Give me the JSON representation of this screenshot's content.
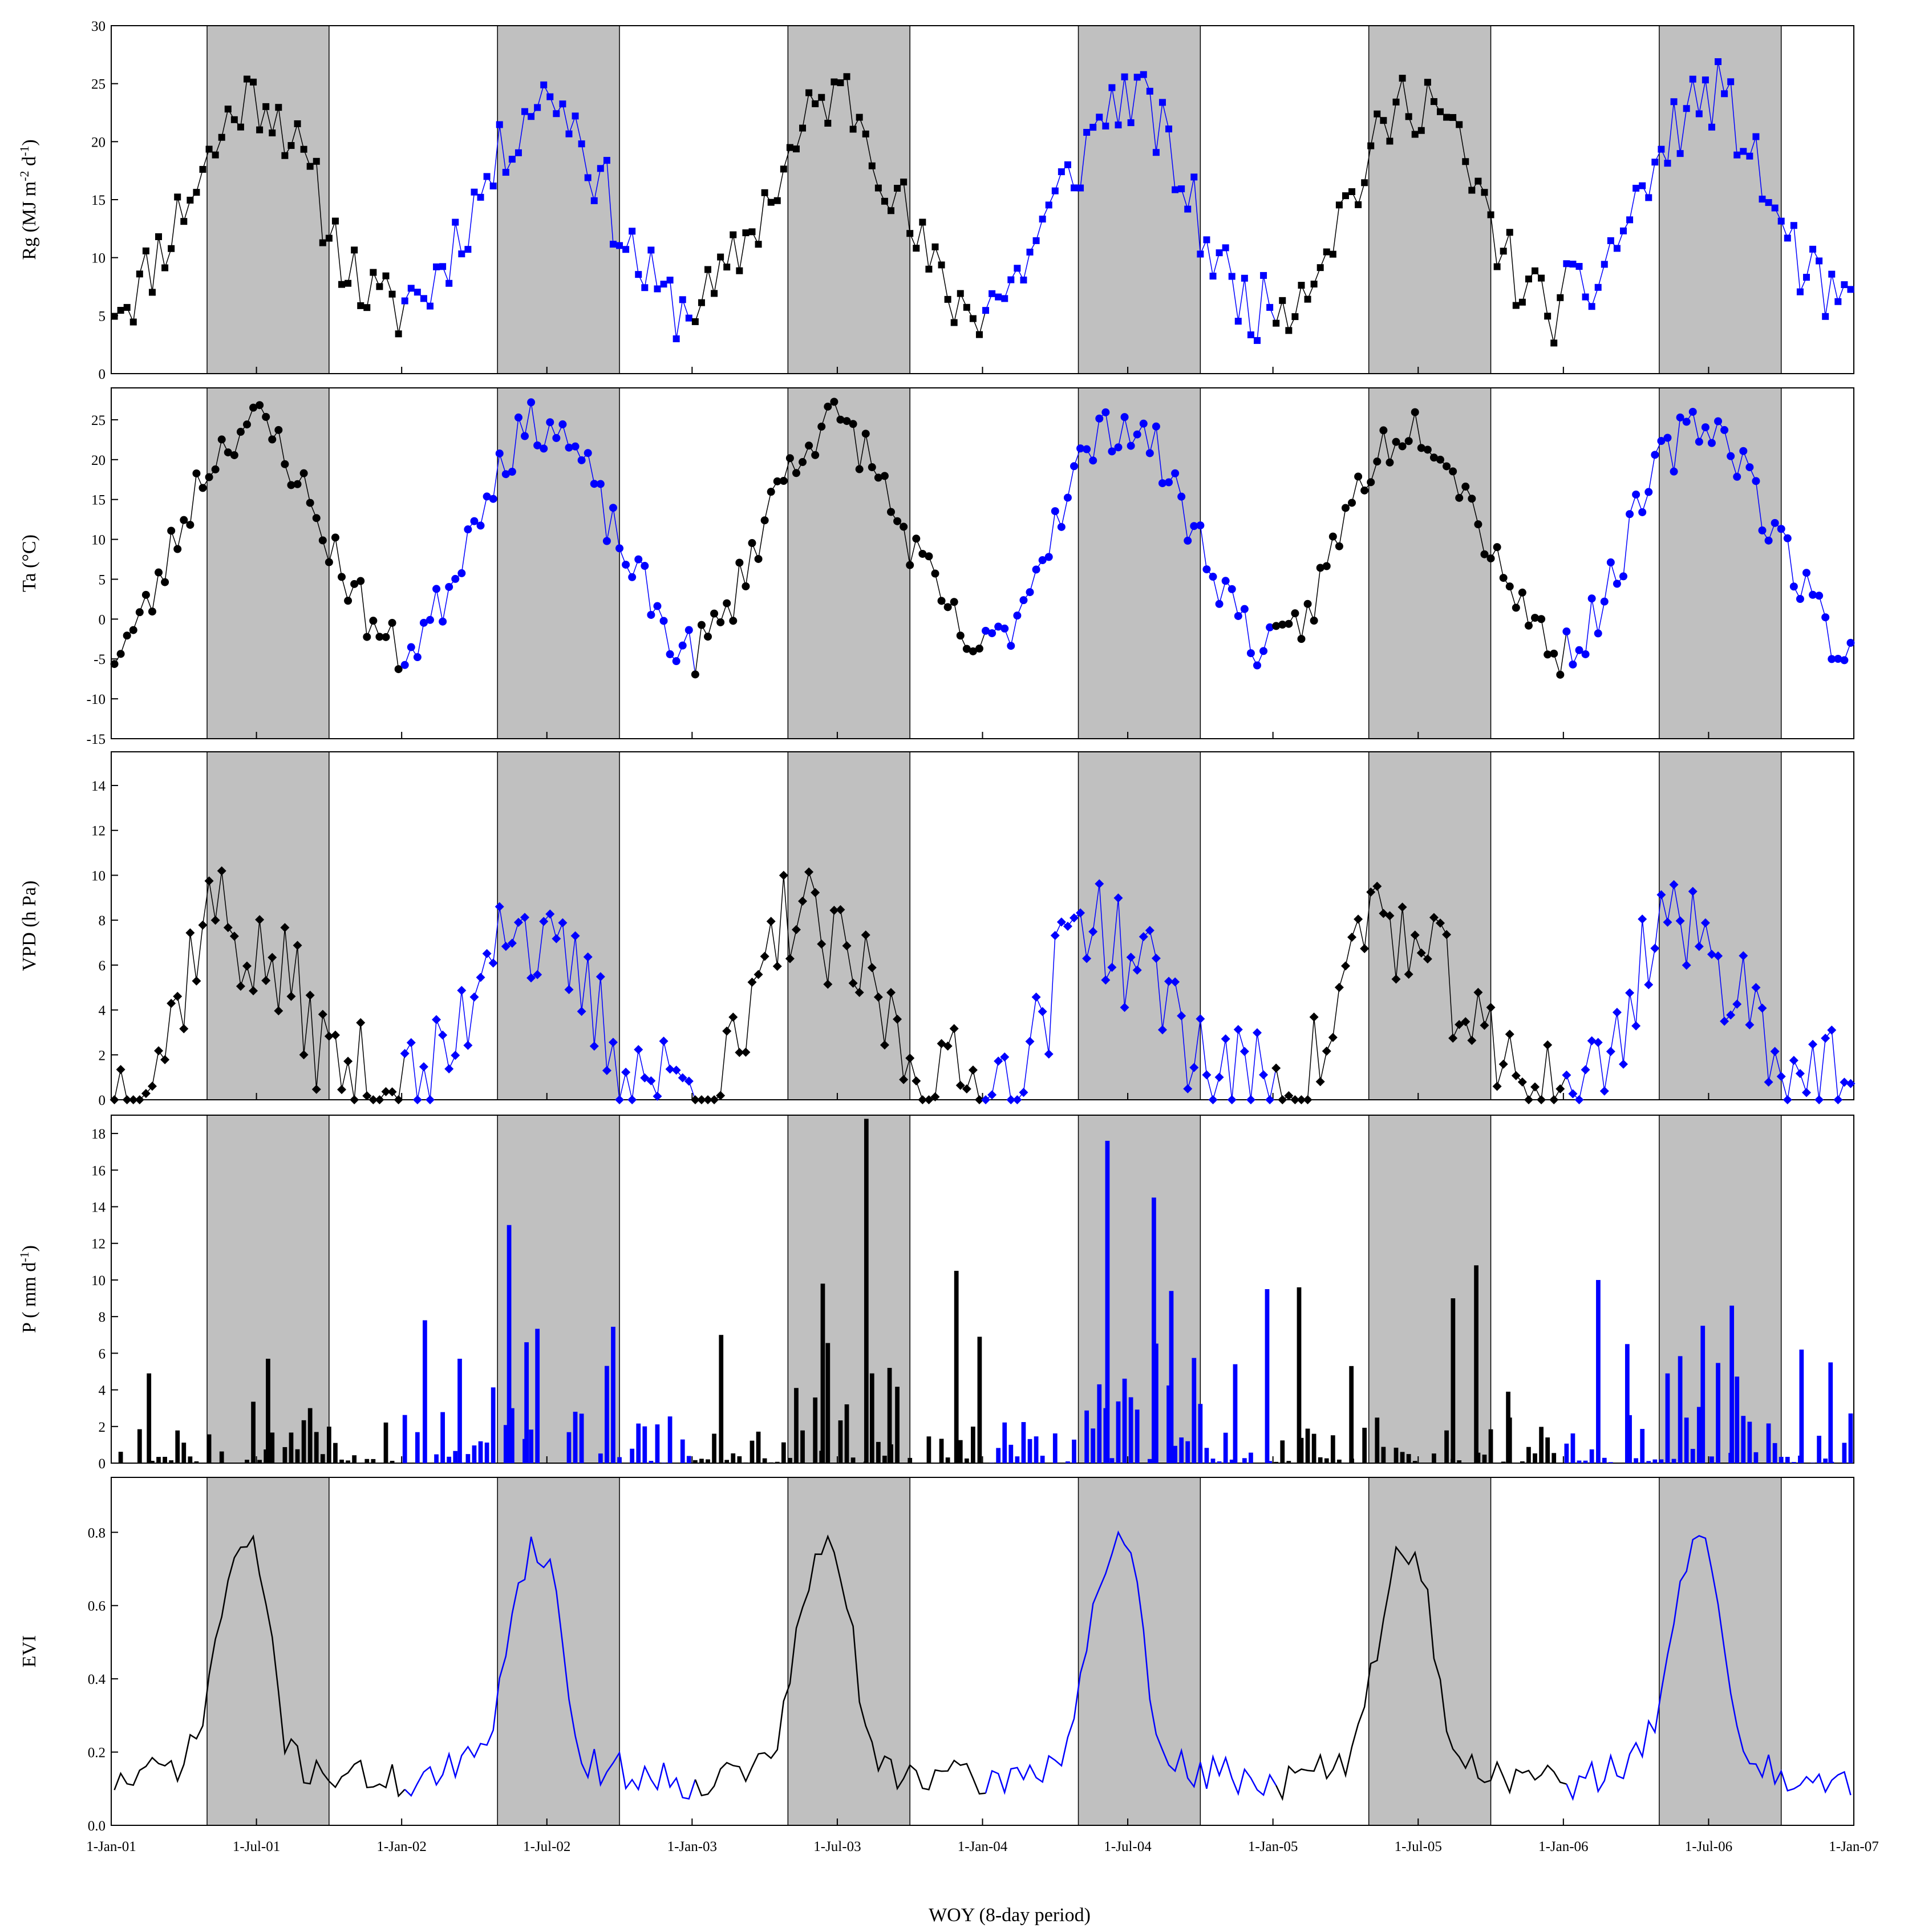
{
  "figure": {
    "xlabel": "WOY (8-day period)",
    "x_tick_labels": [
      "1-Jan-01",
      "1-Jul-01",
      "1-Jan-02",
      "1-Jul-02",
      "1-Jan-03",
      "1-Jul-03",
      "1-Jan-04",
      "1-Jul-04",
      "1-Jan-05",
      "1-Jul-05",
      "1-Jan-06",
      "1-Jul-06",
      "1-Jan-07"
    ],
    "x_tick_years": [
      2001,
      2001.5,
      2002,
      2002.5,
      2003,
      2003.5,
      2004,
      2004.5,
      2005,
      2005.5,
      2006,
      2006.5,
      2007
    ],
    "growing_seasons_shaded": [
      [
        2001.33,
        2001.75
      ],
      [
        2002.33,
        2002.75
      ],
      [
        2003.33,
        2003.75
      ],
      [
        2004.33,
        2004.75
      ],
      [
        2005.33,
        2005.75
      ],
      [
        2006.33,
        2006.75
      ]
    ],
    "colors": {
      "black_years": "#000000",
      "blue_years": "#0000ff",
      "shade": "#c0c0c0"
    },
    "series_colors_by_year": {
      "2001": "#000000",
      "2002": "#0000ff",
      "2003": "#000000",
      "2004": "#0000ff",
      "2005": "#000000",
      "2006": "#0000ff"
    }
  },
  "chart_data": [
    {
      "type": "line",
      "id": "rg",
      "ylabel_main": "Rg (MJ m",
      "ylabel_sup1": "-2",
      "ylabel_mid": " d",
      "ylabel_sup2": "-1",
      "ylabel_end": ")",
      "ylim": [
        0,
        30
      ],
      "yticks": [
        0,
        5,
        10,
        15,
        20,
        25,
        30
      ],
      "marker": "square",
      "annual_profile": [
        6.5,
        6.8,
        6.6,
        7.0,
        7.3,
        8.5,
        9.5,
        10.5,
        11.5,
        12.5,
        13.5,
        14.5,
        15.8,
        16.5,
        17.5,
        18.5,
        19.5,
        20.5,
        21.8,
        22.5,
        23.5,
        24.0,
        23.5,
        23.8,
        24.2,
        23.0,
        22.5,
        21.5,
        20.5,
        19.0,
        17.5,
        16.5,
        15.5,
        14.0,
        12.5,
        11.5,
        10.5,
        9.5,
        8.5,
        7.8,
        7.0,
        6.5,
        6.0,
        5.8,
        5.5,
        5.5
      ],
      "seed": 11,
      "noise": 3.0
    },
    {
      "type": "line",
      "id": "ta",
      "ylabel_main": "Ta (°C)",
      "ylim": [
        -15,
        29
      ],
      "yticks": [
        -15,
        -10,
        -5,
        0,
        5,
        10,
        15,
        20,
        25
      ],
      "marker": "circle",
      "annual_profile": [
        -4.0,
        -3.5,
        -2.5,
        -1.5,
        -0.5,
        1.0,
        2.5,
        4.5,
        6.5,
        8.5,
        10.5,
        12.5,
        14.5,
        16.5,
        18.0,
        19.5,
        20.5,
        21.5,
        22.5,
        23.5,
        24.0,
        24.5,
        24.5,
        24.3,
        24.0,
        23.0,
        22.0,
        21.0,
        19.5,
        18.0,
        16.0,
        14.0,
        12.5,
        11.0,
        9.5,
        8.0,
        6.5,
        5.0,
        3.5,
        2.0,
        0.5,
        -0.5,
        -2.0,
        -3.0,
        -3.5,
        -4.0
      ],
      "seed": 23,
      "noise": 3.2
    },
    {
      "type": "line",
      "id": "vpd",
      "ylabel_main": "VPD (h Pa)",
      "ylim": [
        0,
        15.5
      ],
      "yticks": [
        0,
        2,
        4,
        6,
        8,
        10,
        12,
        14
      ],
      "marker": "diamond",
      "annual_profile": [
        0.7,
        0.7,
        0.8,
        0.9,
        1.0,
        1.3,
        1.6,
        2.0,
        2.6,
        3.3,
        4.2,
        5.2,
        6.2,
        7.2,
        8.0,
        8.5,
        8.6,
        8.4,
        8.0,
        7.5,
        7.0,
        6.6,
        6.3,
        6.1,
        6.0,
        5.8,
        5.6,
        5.3,
        5.0,
        4.6,
        4.0,
        3.4,
        2.8,
        2.3,
        1.9,
        1.6,
        1.4,
        1.3,
        1.2,
        1.1,
        1.0,
        0.9,
        0.8,
        0.8,
        0.7,
        0.7
      ],
      "seed": 37,
      "noise": 2.4
    },
    {
      "type": "bar",
      "id": "p",
      "ylabel_main": "P ( mm d",
      "ylabel_sup1": "-1",
      "ylabel_end": ")",
      "ylim": [
        0,
        19
      ],
      "yticks": [
        0,
        2,
        4,
        6,
        8,
        10,
        12,
        14,
        16,
        18
      ],
      "seed": 53,
      "highlights": [
        [
          2001.13,
          4.9
        ],
        [
          2001.54,
          5.7
        ],
        [
          2002.08,
          7.8
        ],
        [
          2002.2,
          5.7
        ],
        [
          2002.37,
          13.0
        ],
        [
          2002.43,
          6.6
        ],
        [
          2003.1,
          7.0
        ],
        [
          2003.45,
          9.8
        ],
        [
          2003.6,
          18.8
        ],
        [
          2003.68,
          5.2
        ],
        [
          2003.91,
          10.5
        ],
        [
          2003.99,
          6.9
        ],
        [
          2004.43,
          17.6
        ],
        [
          2004.59,
          14.5
        ],
        [
          2004.65,
          9.4
        ],
        [
          2004.87,
          5.4
        ],
        [
          2005.09,
          9.6
        ],
        [
          2004.98,
          9.5
        ],
        [
          2005.27,
          5.3
        ],
        [
          2005.62,
          9.0
        ],
        [
          2005.7,
          10.8
        ],
        [
          2005.81,
          3.9
        ],
        [
          2006.12,
          10.0
        ],
        [
          2006.22,
          6.5
        ],
        [
          2006.48,
          7.5
        ],
        [
          2006.58,
          8.6
        ],
        [
          2006.82,
          6.2
        ],
        [
          2006.92,
          5.5
        ]
      ]
    },
    {
      "type": "line",
      "id": "evi",
      "ylabel_main": "EVI",
      "ylim": [
        0,
        0.95
      ],
      "yticks": [
        0.0,
        0.2,
        0.4,
        0.6,
        0.8
      ],
      "marker": "none",
      "annual_profile": [
        0.12,
        0.12,
        0.12,
        0.13,
        0.13,
        0.14,
        0.14,
        0.15,
        0.15,
        0.16,
        0.17,
        0.18,
        0.2,
        0.24,
        0.3,
        0.4,
        0.5,
        0.58,
        0.66,
        0.72,
        0.75,
        0.76,
        0.74,
        0.7,
        0.62,
        0.5,
        0.36,
        0.24,
        0.19,
        0.17,
        0.16,
        0.16,
        0.15,
        0.15,
        0.15,
        0.14,
        0.14,
        0.14,
        0.14,
        0.13,
        0.13,
        0.13,
        0.13,
        0.12,
        0.12,
        0.12
      ],
      "seed": 71,
      "noise": 0.05
    }
  ]
}
